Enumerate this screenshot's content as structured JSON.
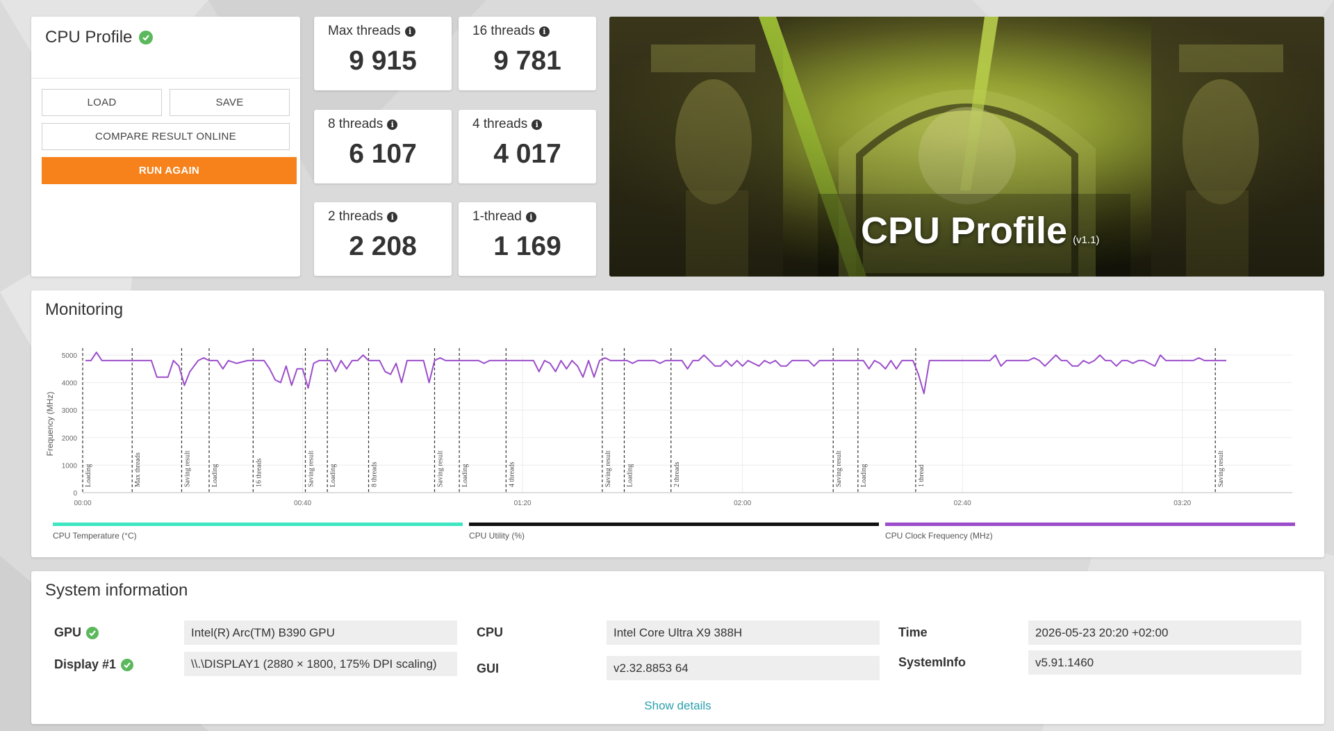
{
  "profile": {
    "title": "CPU Profile",
    "load_label": "LOAD",
    "save_label": "SAVE",
    "compare_label": "COMPARE RESULT ONLINE",
    "run_again_label": "RUN AGAIN"
  },
  "scores": [
    {
      "label": "Max threads",
      "value": "9 915"
    },
    {
      "label": "16 threads",
      "value": "9 781"
    },
    {
      "label": "8 threads",
      "value": "6 107"
    },
    {
      "label": "4 threads",
      "value": "4 017"
    },
    {
      "label": "2 threads",
      "value": "2 208"
    },
    {
      "label": "1-thread",
      "value": "1 169"
    }
  ],
  "hero": {
    "title": "CPU Profile",
    "version": "(v1.1)"
  },
  "monitoring": {
    "title": "Monitoring",
    "legend": [
      {
        "label": "CPU Temperature (°C)",
        "color": "#3ee6c1"
      },
      {
        "label": "CPU Utility (%)",
        "color": "#111111"
      },
      {
        "label": "CPU Clock Frequency (MHz)",
        "color": "#9b4dca"
      }
    ]
  },
  "chart_data": {
    "type": "line",
    "ylabel": "Frequency (MHz)",
    "ylim": [
      0,
      5000
    ],
    "y_ticks": [
      0,
      1000,
      2000,
      3000,
      4000,
      5000
    ],
    "x_ticks": [
      {
        "t": 0,
        "label": "00:00"
      },
      {
        "t": 40,
        "label": "00:40"
      },
      {
        "t": 80,
        "label": "01:20"
      },
      {
        "t": 120,
        "label": "02:00"
      },
      {
        "t": 160,
        "label": "02:40"
      },
      {
        "t": 200,
        "label": "03:20"
      }
    ],
    "xlim": [
      0,
      220
    ],
    "grid": true,
    "markers": [
      {
        "t": 0,
        "label": "Loading"
      },
      {
        "t": 9,
        "label": "Max threads"
      },
      {
        "t": 18,
        "label": "Saving result"
      },
      {
        "t": 23,
        "label": "Loading"
      },
      {
        "t": 31,
        "label": "16 threads"
      },
      {
        "t": 40.5,
        "label": "Saving result"
      },
      {
        "t": 44.5,
        "label": "Loading"
      },
      {
        "t": 52,
        "label": "8 threads"
      },
      {
        "t": 64,
        "label": "Saving result"
      },
      {
        "t": 68.5,
        "label": "Loading"
      },
      {
        "t": 77,
        "label": "4 threads"
      },
      {
        "t": 94.5,
        "label": "Saving result"
      },
      {
        "t": 98.5,
        "label": "Loading"
      },
      {
        "t": 107,
        "label": "2 threads"
      },
      {
        "t": 136.5,
        "label": "Saving result"
      },
      {
        "t": 141,
        "label": "Loading"
      },
      {
        "t": 151.5,
        "label": "1 thread"
      },
      {
        "t": 206,
        "label": "Saving result"
      }
    ],
    "series": [
      {
        "name": "CPU Clock Frequency (MHz)",
        "color": "#9b4dca",
        "points": [
          [
            0.5,
            4800
          ],
          [
            1.5,
            4800
          ],
          [
            2.5,
            5100
          ],
          [
            3.5,
            4800
          ],
          [
            5,
            4800
          ],
          [
            7,
            4800
          ],
          [
            9,
            4800
          ],
          [
            10.5,
            4800
          ],
          [
            12.5,
            4800
          ],
          [
            13.5,
            4200
          ],
          [
            15.5,
            4200
          ],
          [
            16.5,
            4800
          ],
          [
            17.5,
            4600
          ],
          [
            18.5,
            3900
          ],
          [
            19.5,
            4400
          ],
          [
            21,
            4800
          ],
          [
            22,
            4900
          ],
          [
            23,
            4800
          ],
          [
            24.5,
            4800
          ],
          [
            25.5,
            4500
          ],
          [
            26.5,
            4800
          ],
          [
            28,
            4700
          ],
          [
            30,
            4800
          ],
          [
            31,
            4800
          ],
          [
            33,
            4800
          ],
          [
            34,
            4500
          ],
          [
            35,
            4100
          ],
          [
            36,
            4000
          ],
          [
            37,
            4600
          ],
          [
            38,
            3900
          ],
          [
            39,
            4500
          ],
          [
            40,
            4500
          ],
          [
            41,
            3800
          ],
          [
            42,
            4700
          ],
          [
            43,
            4800
          ],
          [
            44,
            4800
          ],
          [
            45,
            4800
          ],
          [
            46,
            4400
          ],
          [
            47,
            4800
          ],
          [
            48,
            4500
          ],
          [
            49,
            4800
          ],
          [
            50,
            4800
          ],
          [
            51,
            5000
          ],
          [
            52,
            4800
          ],
          [
            54,
            4800
          ],
          [
            55,
            4400
          ],
          [
            56,
            4300
          ],
          [
            57,
            4700
          ],
          [
            58,
            4000
          ],
          [
            59,
            4800
          ],
          [
            61,
            4800
          ],
          [
            62,
            4800
          ],
          [
            63,
            4000
          ],
          [
            64,
            4800
          ],
          [
            65,
            4900
          ],
          [
            66,
            4800
          ],
          [
            67,
            4800
          ],
          [
            68,
            4800
          ],
          [
            70,
            4800
          ],
          [
            72,
            4800
          ],
          [
            73,
            4700
          ],
          [
            74,
            4800
          ],
          [
            75,
            4800
          ],
          [
            76,
            4800
          ],
          [
            77,
            4800
          ],
          [
            79,
            4800
          ],
          [
            82,
            4800
          ],
          [
            83,
            4400
          ],
          [
            84,
            4800
          ],
          [
            85,
            4700
          ],
          [
            86,
            4400
          ],
          [
            87,
            4800
          ],
          [
            88,
            4500
          ],
          [
            89,
            4800
          ],
          [
            90,
            4600
          ],
          [
            91,
            4200
          ],
          [
            92,
            4800
          ],
          [
            93,
            4200
          ],
          [
            94,
            4800
          ],
          [
            95,
            4900
          ],
          [
            96,
            4800
          ],
          [
            97,
            4800
          ],
          [
            98,
            4800
          ],
          [
            99,
            4800
          ],
          [
            100,
            4700
          ],
          [
            101,
            4800
          ],
          [
            102,
            4800
          ],
          [
            104,
            4800
          ],
          [
            105,
            4700
          ],
          [
            106,
            4800
          ],
          [
            108,
            4800
          ],
          [
            109,
            4800
          ],
          [
            110,
            4500
          ],
          [
            111,
            4800
          ],
          [
            112,
            4800
          ],
          [
            113,
            5000
          ],
          [
            114,
            4800
          ],
          [
            115,
            4600
          ],
          [
            116,
            4600
          ],
          [
            117,
            4800
          ],
          [
            118,
            4600
          ],
          [
            119,
            4800
          ],
          [
            120,
            4600
          ],
          [
            121,
            4800
          ],
          [
            122,
            4700
          ],
          [
            123,
            4600
          ],
          [
            124,
            4800
          ],
          [
            125,
            4700
          ],
          [
            126,
            4800
          ],
          [
            127,
            4600
          ],
          [
            128,
            4600
          ],
          [
            129,
            4800
          ],
          [
            131,
            4800
          ],
          [
            132,
            4800
          ],
          [
            133,
            4600
          ],
          [
            134,
            4800
          ],
          [
            135,
            4800
          ],
          [
            136,
            4800
          ],
          [
            137,
            4800
          ],
          [
            138,
            4800
          ],
          [
            139,
            4800
          ],
          [
            140,
            4800
          ],
          [
            141,
            4800
          ],
          [
            142,
            4800
          ],
          [
            143,
            4500
          ],
          [
            144,
            4800
          ],
          [
            145,
            4700
          ],
          [
            146,
            4500
          ],
          [
            147,
            4800
          ],
          [
            148,
            4500
          ],
          [
            149,
            4800
          ],
          [
            150,
            4800
          ],
          [
            151,
            4800
          ],
          [
            152,
            4300
          ],
          [
            153,
            3600
          ],
          [
            154,
            4800
          ],
          [
            156,
            4800
          ],
          [
            158,
            4800
          ],
          [
            160,
            4800
          ],
          [
            162,
            4800
          ],
          [
            164,
            4800
          ],
          [
            165,
            4800
          ],
          [
            166,
            5000
          ],
          [
            167,
            4600
          ],
          [
            168,
            4800
          ],
          [
            170,
            4800
          ],
          [
            172,
            4800
          ],
          [
            173,
            4900
          ],
          [
            174,
            4800
          ],
          [
            175,
            4600
          ],
          [
            176,
            4800
          ],
          [
            177,
            5000
          ],
          [
            178,
            4800
          ],
          [
            179,
            4800
          ],
          [
            180,
            4600
          ],
          [
            181,
            4600
          ],
          [
            182,
            4800
          ],
          [
            183,
            4700
          ],
          [
            184,
            4800
          ],
          [
            185,
            5000
          ],
          [
            186,
            4800
          ],
          [
            187,
            4800
          ],
          [
            188,
            4600
          ],
          [
            189,
            4800
          ],
          [
            190,
            4800
          ],
          [
            191,
            4700
          ],
          [
            192,
            4800
          ],
          [
            193,
            4800
          ],
          [
            194,
            4700
          ],
          [
            195,
            4600
          ],
          [
            196,
            5000
          ],
          [
            197,
            4800
          ],
          [
            198,
            4800
          ],
          [
            199,
            4800
          ],
          [
            200,
            4800
          ],
          [
            201,
            4800
          ],
          [
            202,
            4800
          ],
          [
            203,
            4900
          ],
          [
            204,
            4800
          ],
          [
            205,
            4800
          ],
          [
            206,
            4800
          ],
          [
            207,
            4800
          ],
          [
            208,
            4800
          ]
        ]
      }
    ]
  },
  "system_info": {
    "title": "System information",
    "gpu_label": "GPU",
    "gpu_value": "Intel(R) Arc(TM) B390 GPU",
    "display_label": "Display #1",
    "display_value": "\\\\.\\DISPLAY1 (2880 × 1800, 175% DPI scaling)",
    "cpu_label": "CPU",
    "cpu_value": "Intel Core Ultra X9 388H",
    "gui_label": "GUI",
    "gui_value": "v2.32.8853 64",
    "time_label": "Time",
    "time_value": "2026-05-23 20:20 +02:00",
    "systeminfo_label": "SystemInfo",
    "systeminfo_value": "v5.91.1460",
    "show_details_label": "Show details"
  },
  "colors": {
    "accent_orange": "#f7821b",
    "check_green": "#5cb85c",
    "link_teal": "#2aa1ae"
  }
}
